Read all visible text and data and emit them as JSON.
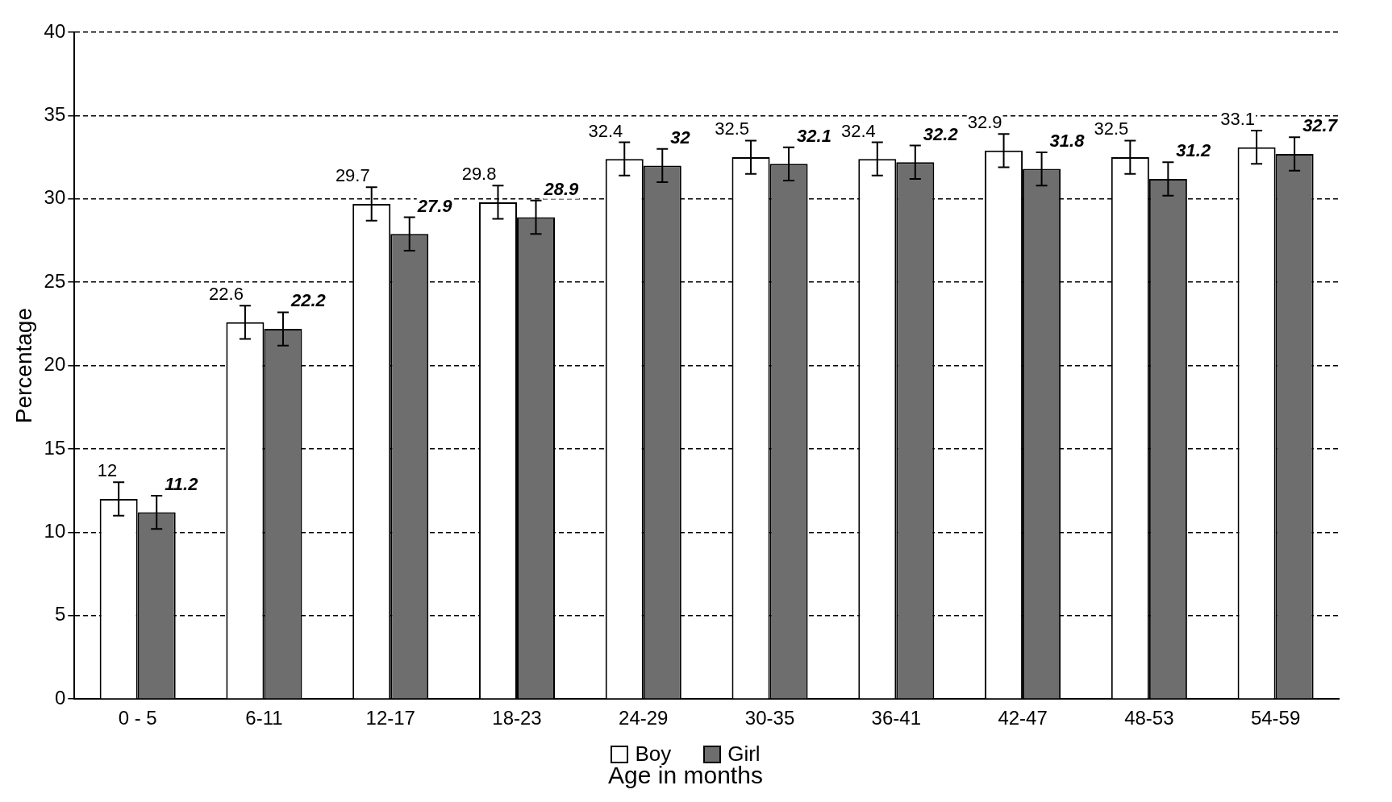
{
  "chart_data": {
    "type": "bar",
    "xlabel": "Age in months",
    "ylabel": "Percentage",
    "categories": [
      "0 - 5",
      "6-11",
      "12-17",
      "18-23",
      "24-29",
      "30-35",
      "36-41",
      "42-47",
      "48-53",
      "54-59"
    ],
    "series": [
      {
        "name": "Boy",
        "color": "#ffffff",
        "values": [
          12,
          22.6,
          29.7,
          29.8,
          32.4,
          32.5,
          32.4,
          32.9,
          32.5,
          33.1
        ],
        "errors": [
          1,
          1,
          1,
          1,
          1,
          1,
          1,
          1,
          1,
          1
        ]
      },
      {
        "name": "Girl",
        "color": "#6e6e6e",
        "values": [
          11.2,
          22.2,
          27.9,
          28.9,
          32,
          32.1,
          32.2,
          31.8,
          31.2,
          32.7
        ],
        "errors": [
          1,
          1,
          1,
          1,
          1,
          1,
          1,
          1,
          1,
          1
        ]
      }
    ],
    "ylim": [
      0,
      40
    ],
    "yticks": [
      0,
      5,
      10,
      15,
      20,
      25,
      30,
      35,
      40
    ],
    "grid": "y",
    "legend": "bottom",
    "data_labels": true
  }
}
